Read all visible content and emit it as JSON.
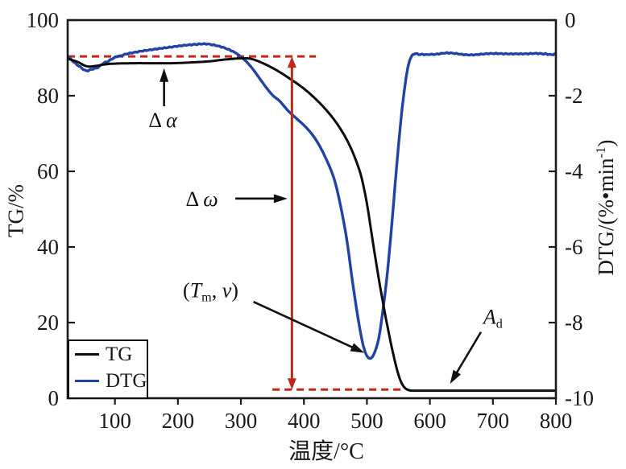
{
  "figure": {
    "background": "#ffffff",
    "axis_color": "#1a1a1a",
    "right_label": {
      "pre": "DTG/(%•min",
      "sup": "-1",
      "post": ")"
    }
  },
  "legend": {
    "items": [
      {
        "label": "TG",
        "color": "#0d0d0d"
      },
      {
        "label": "DTG",
        "color": "#2343a4"
      }
    ]
  },
  "annotations": [
    {
      "id": "delta-alpha",
      "text_delta": "Δ ",
      "text_symbol": "α",
      "label_at": {
        "T": 176,
        "TG": 73.5
      },
      "arrow": {
        "from_T": 178,
        "from_TG": 77.2,
        "to_T": 178,
        "to_TG": 87.3
      }
    },
    {
      "id": "delta-omega",
      "text_delta": "Δ ",
      "text_symbol": "ω",
      "label_at": {
        "T": 238,
        "TG": 52.5
      },
      "arrow": {
        "from_T": 291,
        "from_TG": 52.8,
        "to_T": 374,
        "to_TG": 52.8
      }
    },
    {
      "id": "tm-v",
      "open": "(",
      "var1": "T",
      "sub1": "m",
      "sep": ", ",
      "var2": "v",
      "close": ")",
      "label_at": {
        "T": 252,
        "TG": 28
      },
      "arrow": {
        "from_T": 320,
        "from_TG": 25.5,
        "to_T": 496,
        "to_TG": 12
      }
    },
    {
      "id": "a-d",
      "var": "A",
      "sub": "d",
      "label_at": {
        "T": 700,
        "TG": 21
      },
      "arrow": {
        "from_T": 681,
        "from_TG": 17.5,
        "to_T": 632,
        "to_TG": 3.8
      }
    }
  ],
  "chart_data": {
    "type": "line",
    "title": "",
    "xlabel": "温度/°C",
    "ylabel_left": "TG/%",
    "ylabel_right": "DTG/(%•min⁻¹)",
    "x_range": [
      25,
      800
    ],
    "x_ticks": [
      100,
      200,
      300,
      400,
      500,
      600,
      700,
      800
    ],
    "y_left_range": [
      0,
      100
    ],
    "y_left_ticks": [
      0,
      20,
      40,
      60,
      80,
      100
    ],
    "y_right_range": [
      -10,
      0
    ],
    "y_right_ticks": [
      0,
      -2,
      -4,
      -6,
      -8,
      -10
    ],
    "grid": false,
    "legend_position": "lower-left",
    "series": [
      {
        "name": "TG",
        "axis": "left",
        "color": "#0d0d0d",
        "points": [
          [
            25,
            89.8
          ],
          [
            40,
            89.0
          ],
          [
            55,
            87.8
          ],
          [
            70,
            87.9
          ],
          [
            85,
            88.3
          ],
          [
            100,
            88.5
          ],
          [
            130,
            88.6
          ],
          [
            160,
            88.6
          ],
          [
            190,
            88.6
          ],
          [
            220,
            88.8
          ],
          [
            250,
            89.1
          ],
          [
            270,
            89.5
          ],
          [
            290,
            89.8
          ],
          [
            305,
            89.9
          ],
          [
            315,
            89.8
          ],
          [
            325,
            89.3
          ],
          [
            335,
            88.6
          ],
          [
            345,
            87.8
          ],
          [
            355,
            86.9
          ],
          [
            365,
            85.9
          ],
          [
            375,
            84.8
          ],
          [
            385,
            83.7
          ],
          [
            395,
            82.5
          ],
          [
            405,
            81.2
          ],
          [
            415,
            79.7
          ],
          [
            425,
            78.1
          ],
          [
            435,
            76.3
          ],
          [
            445,
            74.3
          ],
          [
            455,
            72.0
          ],
          [
            465,
            69.3
          ],
          [
            475,
            66.0
          ],
          [
            485,
            61.8
          ],
          [
            492,
            58.0
          ],
          [
            500,
            51.5
          ],
          [
            507,
            44.0
          ],
          [
            514,
            36.5
          ],
          [
            521,
            29.5
          ],
          [
            528,
            23.0
          ],
          [
            535,
            17.0
          ],
          [
            542,
            11.5
          ],
          [
            549,
            6.8
          ],
          [
            555,
            4.0
          ],
          [
            561,
            2.6
          ],
          [
            567,
            2.1
          ],
          [
            575,
            2.0
          ],
          [
            600,
            2.0
          ],
          [
            640,
            2.0
          ],
          [
            680,
            2.0
          ],
          [
            720,
            2.0
          ],
          [
            760,
            2.0
          ],
          [
            800,
            2.0
          ]
        ]
      },
      {
        "name": "DTG",
        "axis": "right",
        "color": "#2343a4",
        "points": [
          [
            25,
            -0.95
          ],
          [
            35,
            -1.1
          ],
          [
            45,
            -1.25
          ],
          [
            55,
            -1.33
          ],
          [
            65,
            -1.3
          ],
          [
            75,
            -1.22
          ],
          [
            85,
            -1.12
          ],
          [
            95,
            -1.03
          ],
          [
            110,
            -0.93
          ],
          [
            130,
            -0.85
          ],
          [
            150,
            -0.8
          ],
          [
            170,
            -0.76
          ],
          [
            190,
            -0.72
          ],
          [
            210,
            -0.68
          ],
          [
            230,
            -0.65
          ],
          [
            245,
            -0.64
          ],
          [
            260,
            -0.67
          ],
          [
            275,
            -0.73
          ],
          [
            290,
            -0.85
          ],
          [
            300,
            -0.97
          ],
          [
            310,
            -1.12
          ],
          [
            320,
            -1.32
          ],
          [
            330,
            -1.55
          ],
          [
            340,
            -1.78
          ],
          [
            350,
            -1.98
          ],
          [
            362,
            -2.15
          ],
          [
            375,
            -2.4
          ],
          [
            388,
            -2.6
          ],
          [
            400,
            -2.78
          ],
          [
            412,
            -3.0
          ],
          [
            424,
            -3.3
          ],
          [
            436,
            -3.7
          ],
          [
            448,
            -4.2
          ],
          [
            458,
            -4.9
          ],
          [
            468,
            -5.8
          ],
          [
            477,
            -6.9
          ],
          [
            486,
            -7.9
          ],
          [
            494,
            -8.6
          ],
          [
            500,
            -8.88
          ],
          [
            506,
            -8.95
          ],
          [
            512,
            -8.8
          ],
          [
            519,
            -8.4
          ],
          [
            526,
            -7.6
          ],
          [
            533,
            -6.6
          ],
          [
            540,
            -5.3
          ],
          [
            547,
            -3.9
          ],
          [
            553,
            -2.8
          ],
          [
            559,
            -1.9
          ],
          [
            565,
            -1.25
          ],
          [
            571,
            -0.95
          ],
          [
            578,
            -0.9
          ],
          [
            600,
            -0.9
          ],
          [
            630,
            -0.88
          ],
          [
            660,
            -0.91
          ],
          [
            690,
            -0.89
          ],
          [
            720,
            -0.9
          ],
          [
            750,
            -0.88
          ],
          [
            780,
            -0.9
          ],
          [
            800,
            -0.9
          ]
        ]
      }
    ],
    "reference_lines": [
      {
        "name": "initial-mass-level",
        "axis": "left",
        "value": 90.4,
        "x_from": 25,
        "x_to": 419,
        "color": "#c1271b",
        "style": "dashed"
      },
      {
        "name": "final-mass-level",
        "axis": "left",
        "value": 2.3,
        "x_from": 350,
        "x_to": 560,
        "color": "#c1271b",
        "style": "dashed"
      }
    ],
    "mass_loss_arrow": {
      "x": 381,
      "from_TG": 90.4,
      "to_TG": 2.3,
      "color": "#c1271b"
    }
  }
}
